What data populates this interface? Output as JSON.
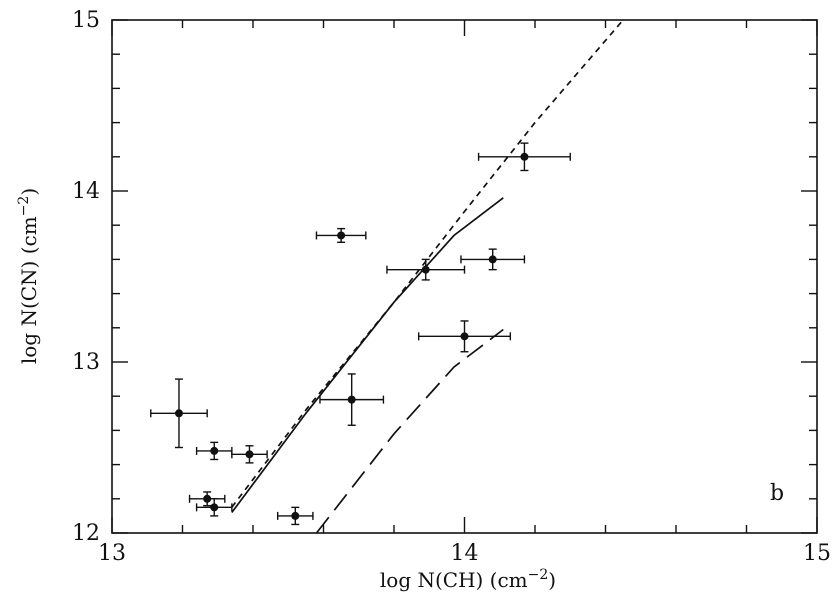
{
  "chart_data": {
    "type": "scatter",
    "title": "",
    "xlabel": "log N(CH) (cm",
    "xlabel_sup": "−2",
    "xlabel_end": ")",
    "ylabel": "log N(CN) (cm",
    "ylabel_sup": "−2",
    "ylabel_end": ")",
    "xlim": [
      13,
      15
    ],
    "ylim": [
      12,
      15
    ],
    "x_ticks": [
      "13",
      "14",
      "15"
    ],
    "y_ticks": [
      "12",
      "13",
      "14",
      "15"
    ],
    "grid": false,
    "panel_label": "b",
    "points": [
      {
        "x": 13.19,
        "y": 12.7,
        "xerr": 0.08,
        "yerr": 0.2
      },
      {
        "x": 13.29,
        "y": 12.48,
        "xerr": 0.05,
        "yerr": 0.05
      },
      {
        "x": 13.39,
        "y": 12.46,
        "xerr": 0.05,
        "yerr": 0.05
      },
      {
        "x": 13.27,
        "y": 12.2,
        "xerr": 0.05,
        "yerr": 0.04
      },
      {
        "x": 13.29,
        "y": 12.15,
        "xerr": 0.05,
        "yerr": 0.05
      },
      {
        "x": 13.52,
        "y": 12.1,
        "xerr": 0.05,
        "yerr": 0.05
      },
      {
        "x": 13.65,
        "y": 13.74,
        "xerr": 0.07,
        "yerr": 0.04
      },
      {
        "x": 13.68,
        "y": 12.78,
        "xerr": 0.09,
        "yerr": 0.15
      },
      {
        "x": 13.89,
        "y": 13.54,
        "xerr": 0.11,
        "yerr": 0.06
      },
      {
        "x": 14.08,
        "y": 13.6,
        "xerr": 0.09,
        "yerr": 0.06
      },
      {
        "x": 14.0,
        "y": 13.15,
        "xerr": 0.13,
        "yerr": 0.09
      },
      {
        "x": 14.17,
        "y": 14.2,
        "xerr": 0.13,
        "yerr": 0.08
      }
    ],
    "series": [
      {
        "style": "solid",
        "x": [
          13.34,
          13.55,
          13.8,
          13.97,
          14.11
        ],
        "y": [
          12.12,
          12.7,
          13.35,
          13.74,
          13.96
        ]
      },
      {
        "style": "short-dash",
        "x": [
          13.34,
          13.55,
          13.8,
          14.0,
          14.2,
          14.45
        ],
        "y": [
          12.15,
          12.72,
          13.35,
          13.88,
          14.4,
          15.0
        ]
      },
      {
        "style": "long-dash",
        "x": [
          13.58,
          13.8,
          13.97,
          14.11
        ],
        "y": [
          12.0,
          12.58,
          12.97,
          13.19
        ]
      }
    ]
  }
}
